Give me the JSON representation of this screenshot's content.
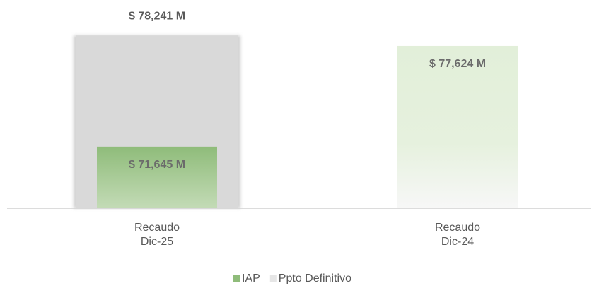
{
  "chart_data": {
    "type": "bar",
    "categories": [
      "Recaudo\nDic-25",
      "Recaudo\nDic-24"
    ],
    "series": [
      {
        "name": "IAP",
        "color": "#8fbc7a",
        "values": [
          71645,
          77624
        ],
        "value_labels": [
          "$ 71,645 M",
          "$ 77,624 M"
        ]
      },
      {
        "name": "Ppto Definitivo",
        "color": "#d9d9d9",
        "values": [
          78241,
          null
        ],
        "value_labels": [
          "$ 78,241 M",
          null
        ]
      }
    ],
    "ylim": [
      68000,
      78500
    ],
    "legend": "bottom"
  }
}
